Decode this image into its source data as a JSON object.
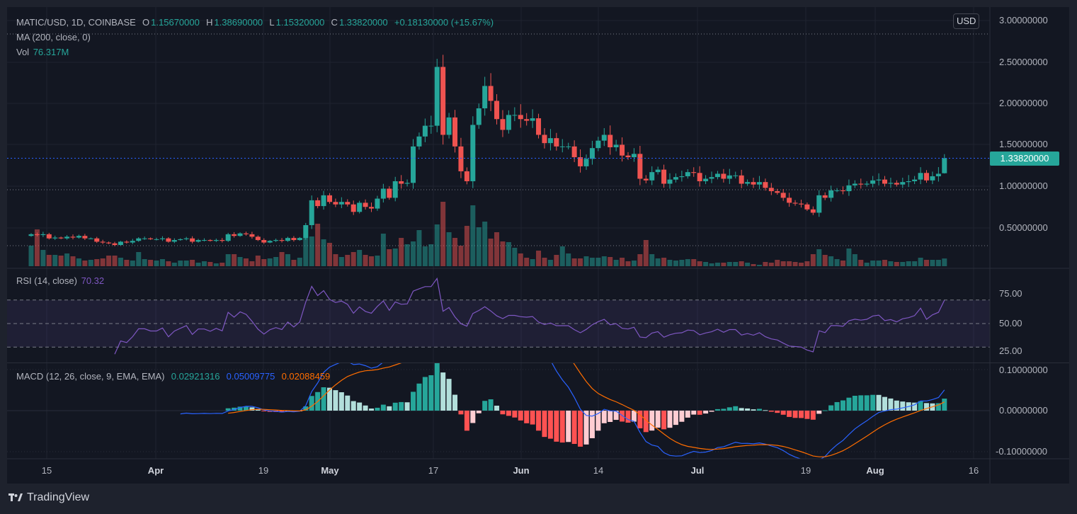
{
  "header": {
    "symbol": "MATIC/USD, 1D, COINBASE",
    "o_label": "O",
    "o_value": "1.15670000",
    "h_label": "H",
    "h_value": "1.38690000",
    "l_label": "L",
    "l_value": "1.15320000",
    "c_label": "C",
    "c_value": "1.33820000",
    "change": "+0.18130000 (+15.67%)",
    "ma_label": "MA (200, close, 0)",
    "vol_label": "Vol",
    "vol_value": "76.317M"
  },
  "price_axis": {
    "currency": "USD",
    "ticks": [
      "3.00000000",
      "2.50000000",
      "2.00000000",
      "1.50000000",
      "1.00000000",
      "0.50000000"
    ],
    "last_price": "1.33820000"
  },
  "rsi": {
    "label": "RSI (14, close)",
    "value": "70.32",
    "ticks": [
      "75.00",
      "50.00",
      "25.00"
    ]
  },
  "macd": {
    "label": "MACD (12, 26, close, 9, EMA, EMA)",
    "hist_value": "0.02921316",
    "macd_value": "0.05009775",
    "signal_value": "0.02088459",
    "ticks": [
      "0.10000000",
      "0.00000000",
      "-0.10000000"
    ]
  },
  "time_axis": {
    "labels": [
      "15",
      "Apr",
      "19",
      "May",
      "17",
      "Jun",
      "14",
      "Jul",
      "19",
      "Aug",
      "16"
    ]
  },
  "branding": {
    "logo_text": "TradingView"
  },
  "colors": {
    "up": "#26a69a",
    "down": "#ef5350",
    "rsi": "#7e57c2",
    "macd": "#2962ff",
    "signal": "#ff6d00",
    "background": "#131722"
  },
  "chart_data": {
    "type": "candlestick",
    "interval": "1D",
    "ylim": [
      0,
      3.0
    ],
    "grid": true,
    "closes": [
      0.42,
      0.41,
      0.42,
      0.37,
      0.38,
      0.37,
      0.39,
      0.38,
      0.4,
      0.37,
      0.37,
      0.33,
      0.32,
      0.31,
      0.29,
      0.33,
      0.32,
      0.34,
      0.37,
      0.37,
      0.36,
      0.36,
      0.37,
      0.33,
      0.35,
      0.36,
      0.37,
      0.33,
      0.35,
      0.35,
      0.34,
      0.35,
      0.34,
      0.42,
      0.4,
      0.43,
      0.42,
      0.39,
      0.35,
      0.32,
      0.34,
      0.35,
      0.34,
      0.375,
      0.35,
      0.375,
      0.53,
      0.83,
      0.76,
      0.89,
      0.81,
      0.78,
      0.81,
      0.78,
      0.69,
      0.8,
      0.75,
      0.73,
      0.85,
      0.97,
      0.86,
      1.06,
      1.03,
      1.04,
      1.48,
      1.6,
      1.73,
      1.73,
      2.44,
      1.62,
      1.83,
      1.48,
      1.18,
      1.06,
      1.74,
      1.94,
      2.21,
      2.03,
      1.81,
      1.68,
      1.86,
      1.86,
      1.81,
      1.79,
      1.82,
      1.62,
      1.52,
      1.58,
      1.48,
      1.48,
      1.48,
      1.35,
      1.24,
      1.33,
      1.46,
      1.55,
      1.62,
      1.47,
      1.5,
      1.37,
      1.35,
      1.39,
      1.09,
      1.07,
      1.17,
      1.2,
      1.03,
      1.08,
      1.11,
      1.12,
      1.17,
      1.16,
      1.06,
      1.09,
      1.11,
      1.15,
      1.09,
      1.13,
      1.13,
      1.03,
      1.05,
      1.02,
      1.05,
      0.98,
      0.94,
      0.92,
      0.86,
      0.8,
      0.79,
      0.78,
      0.72,
      0.68,
      0.89,
      0.86,
      0.95,
      0.95,
      0.94,
      1.01,
      1.03,
      1.02,
      1.03,
      1.07,
      1.08,
      1.03,
      1.04,
      1.02,
      1.05,
      1.06,
      1.08,
      1.16,
      1.07,
      1.12,
      1.15,
      1.3382
    ],
    "last_candle": {
      "open": 1.1567,
      "high": 1.3869,
      "low": 1.1532,
      "close": 1.3382
    },
    "volume_millions": [
      203,
      364,
      161,
      112,
      112,
      105,
      126,
      98,
      77,
      56,
      63,
      70,
      77,
      105,
      105,
      84,
      63,
      56,
      140,
      70,
      63,
      56,
      70,
      49,
      35,
      56,
      56,
      63,
      35,
      49,
      42,
      28,
      35,
      119,
      119,
      91,
      77,
      49,
      105,
      70,
      77,
      91,
      140,
      119,
      63,
      84,
      280,
      294,
      420,
      266,
      231,
      119,
      91,
      112,
      140,
      161,
      112,
      98,
      105,
      322,
      168,
      175,
      280,
      217,
      245,
      357,
      196,
      217,
      413,
      637,
      336,
      280,
      203,
      399,
      602,
      385,
      441,
      273,
      336,
      245,
      238,
      182,
      126,
      84,
      70,
      154,
      84,
      63,
      112,
      196,
      126,
      77,
      77,
      98,
      84,
      84,
      98,
      91,
      63,
      84,
      49,
      56,
      119,
      259,
      119,
      77,
      84,
      63,
      56,
      63,
      70,
      70,
      49,
      42,
      28,
      35,
      35,
      42,
      42,
      49,
      35,
      21,
      14,
      42,
      35,
      63,
      49,
      49,
      42,
      35,
      49,
      119,
      168,
      112,
      98,
      70,
      56,
      175,
      119,
      63,
      35,
      56,
      56,
      63,
      49,
      42,
      42,
      49,
      49,
      84,
      63,
      63,
      63,
      76.317
    ],
    "rsi_range": [
      25,
      75
    ],
    "rsi_bands": [
      70,
      50,
      30
    ],
    "macd_ylim": [
      -0.1,
      0.1
    ]
  }
}
